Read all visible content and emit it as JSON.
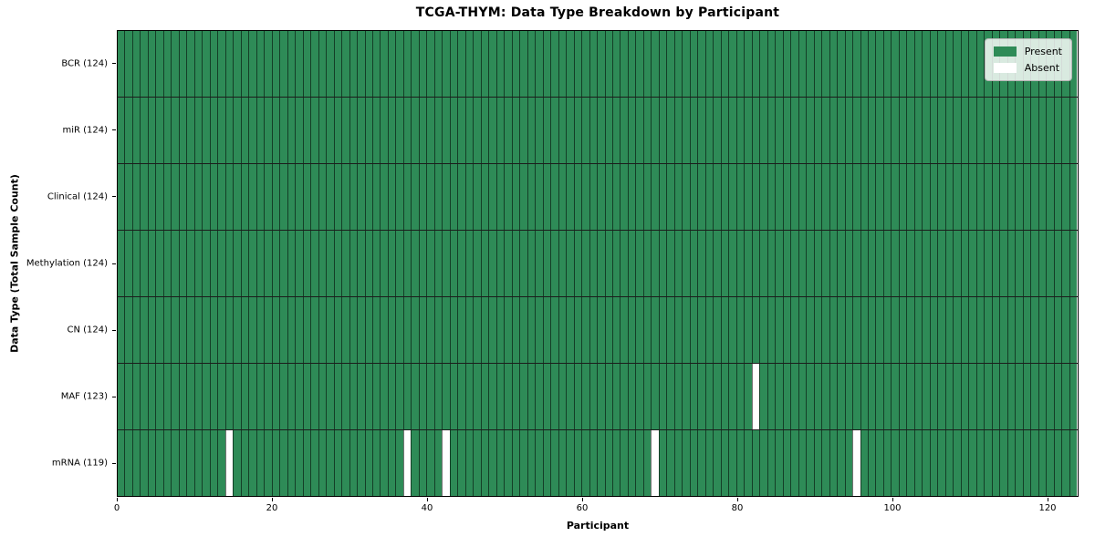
{
  "chart_data": {
    "type": "heatmap",
    "title": "TCGA-THYM: Data Type Breakdown by Participant",
    "xlabel": "Participant",
    "ylabel": "Data Type (Total Sample Count)",
    "x_ticks": [
      0,
      20,
      40,
      60,
      80,
      100,
      120
    ],
    "xlim": [
      0,
      124
    ],
    "n_participants": 124,
    "rows": [
      {
        "data_type": "BCR",
        "label": "BCR (124)",
        "present_count": 124,
        "absent_indices": []
      },
      {
        "data_type": "miR",
        "label": "miR (124)",
        "present_count": 124,
        "absent_indices": []
      },
      {
        "data_type": "Clinical",
        "label": "Clinical (124)",
        "present_count": 124,
        "absent_indices": []
      },
      {
        "data_type": "Methylation",
        "label": "Methylation (124)",
        "present_count": 124,
        "absent_indices": []
      },
      {
        "data_type": "CN",
        "label": "CN (124)",
        "present_count": 124,
        "absent_indices": []
      },
      {
        "data_type": "MAF",
        "label": "MAF (123)",
        "present_count": 123,
        "absent_indices": [
          82
        ]
      },
      {
        "data_type": "mRNA",
        "label": "mRNA (119)",
        "present_count": 119,
        "absent_indices": [
          14,
          37,
          42,
          69,
          95
        ]
      }
    ],
    "legend": [
      {
        "label": "Present",
        "color": "#2e8b57"
      },
      {
        "label": "Absent",
        "color": "#ffffff"
      }
    ],
    "colors": {
      "present": "#2e8b57",
      "absent": "#ffffff"
    },
    "legend_position": "upper-right",
    "grid": false
  }
}
